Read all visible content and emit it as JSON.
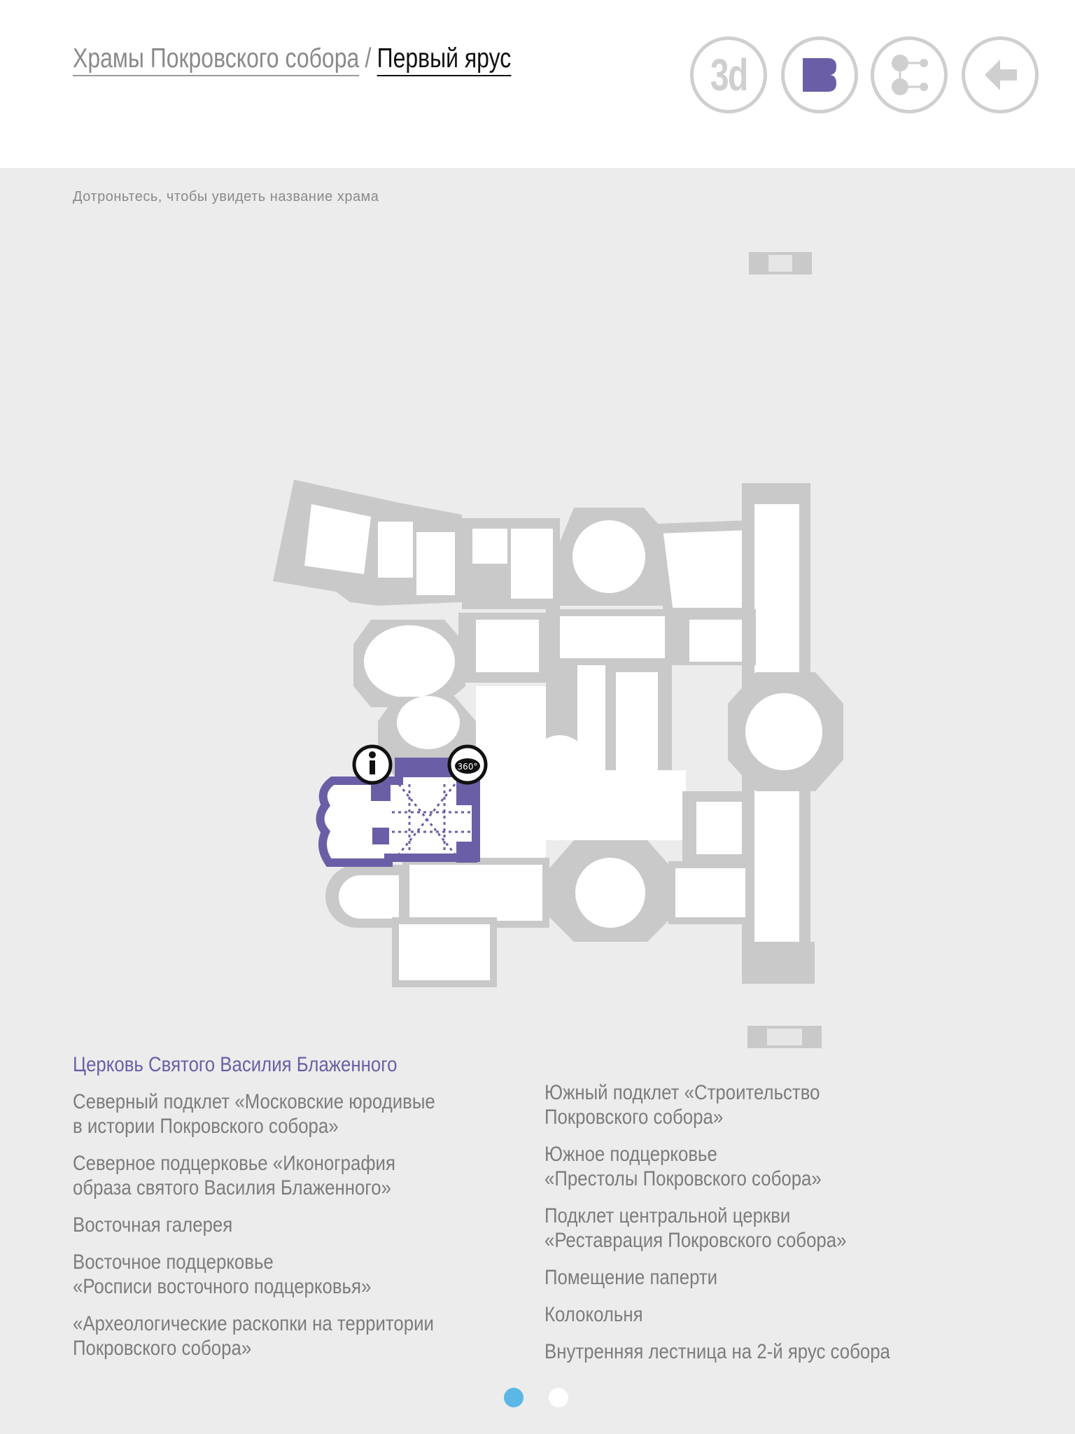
{
  "header": {
    "breadcrumb_root": "Храмы Покровского собора",
    "breadcrumb_sep": "/",
    "breadcrumb_current": "Первый ярус",
    "btn_3d_label": "3d"
  },
  "hint": "Дотроньтесь, чтобы увидеть название храма",
  "map": {
    "badge_360": "360°",
    "highlight_color": "#6a5fa6",
    "base_color": "#c9c9c9"
  },
  "selected_temple": "Церковь Святого Василия Блаженного",
  "list_left": [
    "Северный подклет «Московские юродивые\nв истории Покровского собора»",
    "Северное подцерковье «Иконография\nобраза святого Василия Блаженного»",
    "Восточная галерея",
    "Восточное подцерковье\n«Росписи восточного подцерковья»",
    "«Археологические раскопки на территории\nПокровского собора»"
  ],
  "list_right": [
    "Южный подклет «Строительство\nПокровского собора»",
    "Южное подцерковье\n«Престолы Покровского собора»",
    "Подклет центральной церкви\n«Реставрация Покровского собора»",
    "Помещение паперти",
    "Колокольня",
    "Внутренняя лестница на 2-й ярус собора"
  ],
  "pagination": {
    "active_color": "#5ab7e6"
  }
}
